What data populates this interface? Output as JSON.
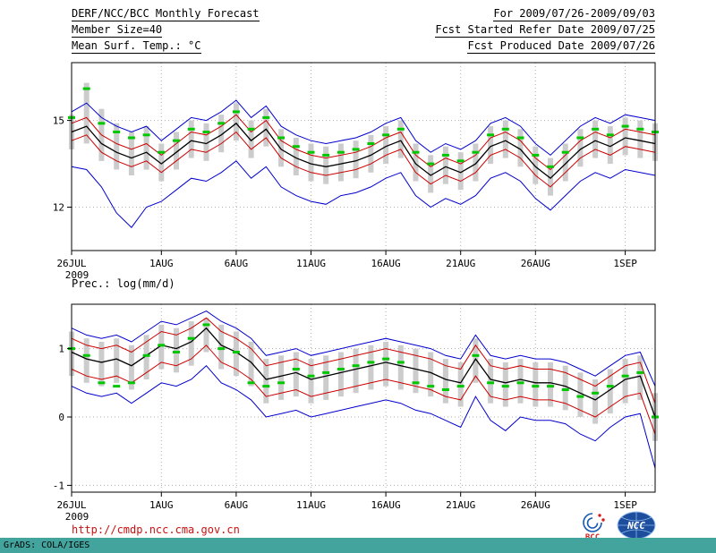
{
  "header": {
    "left_lines": [
      "DERF/NCC/BCC Monthly Forecast",
      "Member Size=40",
      "Mean Surf. Temp.: °C"
    ],
    "right_lines": [
      "For 2009/07/26-2009/09/03",
      "Fcst Started Refer Date 2009/07/25",
      "Fcst Produced Date 2009/07/26"
    ]
  },
  "footer": {
    "url": "http://cmdp.ncc.cma.gov.cn",
    "grads_credit": "GrADS: COLA/IGES",
    "bcc_logo_text": "BCC",
    "ncc_logo_text": "NCC"
  },
  "colors": {
    "ensemble_min_max": "#0000cc",
    "quartile_lines": "#cc0000",
    "ensemble_mean": "#000000",
    "daily_marks": "#00c800",
    "spread_bars": "#cccccc",
    "url_red": "#cc1111",
    "credit_bar_teal": "#43a49d"
  },
  "chart_data": [
    {
      "type": "line",
      "title": "Mean Surf. Temp.: °C",
      "x_year_label": "2009",
      "n_points": 40,
      "x_ticks": [
        {
          "i": 0,
          "label": "26JUL"
        },
        {
          "i": 6,
          "label": "1AUG"
        },
        {
          "i": 11,
          "label": "6AUG"
        },
        {
          "i": 16,
          "label": "11AUG"
        },
        {
          "i": 21,
          "label": "16AUG"
        },
        {
          "i": 26,
          "label": "21AUG"
        },
        {
          "i": 31,
          "label": "26AUG"
        },
        {
          "i": 37,
          "label": "1SEP"
        }
      ],
      "ylim": [
        10.5,
        17.0
      ],
      "y_ticks": [
        12,
        15
      ],
      "grid": "dotted",
      "legend": "none",
      "series": [
        {
          "name": "ensemble-max",
          "color": "#0000cc",
          "width": 1,
          "values": [
            15.3,
            15.6,
            15.1,
            14.8,
            14.6,
            14.8,
            14.3,
            14.7,
            15.1,
            15.0,
            15.3,
            15.7,
            15.1,
            15.5,
            14.8,
            14.5,
            14.3,
            14.2,
            14.3,
            14.4,
            14.6,
            14.9,
            15.1,
            14.3,
            13.9,
            14.2,
            14.0,
            14.3,
            14.9,
            15.1,
            14.8,
            14.2,
            13.8,
            14.3,
            14.8,
            15.1,
            14.9,
            15.2,
            15.1,
            15.0
          ]
        },
        {
          "name": "upper-quartile",
          "color": "#cc0000",
          "width": 1,
          "values": [
            14.9,
            15.1,
            14.5,
            14.2,
            14.0,
            14.2,
            13.8,
            14.2,
            14.6,
            14.5,
            14.8,
            15.2,
            14.6,
            15.0,
            14.3,
            14.0,
            13.8,
            13.7,
            13.8,
            13.9,
            14.1,
            14.4,
            14.6,
            13.8,
            13.4,
            13.7,
            13.5,
            13.8,
            14.4,
            14.6,
            14.3,
            13.7,
            13.3,
            13.8,
            14.3,
            14.6,
            14.4,
            14.7,
            14.6,
            14.5
          ]
        },
        {
          "name": "ensemble-mean",
          "color": "#000000",
          "width": 1.3,
          "values": [
            14.6,
            14.8,
            14.2,
            13.9,
            13.7,
            13.9,
            13.5,
            13.9,
            14.3,
            14.2,
            14.5,
            14.9,
            14.3,
            14.7,
            14.0,
            13.7,
            13.5,
            13.4,
            13.5,
            13.6,
            13.8,
            14.1,
            14.3,
            13.5,
            13.1,
            13.4,
            13.2,
            13.5,
            14.1,
            14.3,
            14.0,
            13.4,
            13.0,
            13.5,
            14.0,
            14.3,
            14.1,
            14.4,
            14.3,
            14.2
          ]
        },
        {
          "name": "lower-quartile",
          "color": "#cc0000",
          "width": 1,
          "values": [
            14.3,
            14.5,
            13.9,
            13.6,
            13.4,
            13.6,
            13.2,
            13.6,
            14.0,
            13.9,
            14.2,
            14.6,
            14.0,
            14.4,
            13.7,
            13.4,
            13.2,
            13.1,
            13.2,
            13.3,
            13.5,
            13.8,
            14.0,
            13.2,
            12.8,
            13.1,
            12.9,
            13.2,
            13.8,
            14.0,
            13.7,
            13.1,
            12.7,
            13.2,
            13.7,
            14.0,
            13.8,
            14.1,
            14.0,
            13.9
          ]
        },
        {
          "name": "ensemble-min",
          "color": "#0000cc",
          "width": 1,
          "values": [
            13.4,
            13.3,
            12.7,
            11.8,
            11.3,
            12.0,
            12.2,
            12.6,
            13.0,
            12.9,
            13.2,
            13.6,
            13.0,
            13.4,
            12.7,
            12.4,
            12.2,
            12.1,
            12.4,
            12.5,
            12.7,
            13.0,
            13.2,
            12.4,
            12.0,
            12.3,
            12.1,
            12.4,
            13.0,
            13.2,
            12.9,
            12.3,
            11.9,
            12.4,
            12.9,
            13.2,
            13.0,
            13.3,
            13.2,
            13.1
          ]
        }
      ],
      "spread_bars": {
        "name": "ensemble-spread-bar",
        "color": "#cccccc",
        "high": [
          15.2,
          16.3,
          15.4,
          14.9,
          14.6,
          14.8,
          14.2,
          14.6,
          15.0,
          14.9,
          15.2,
          15.6,
          15.0,
          15.4,
          14.7,
          14.4,
          14.2,
          14.1,
          14.2,
          14.3,
          14.5,
          14.8,
          15.0,
          14.2,
          13.8,
          14.1,
          13.9,
          14.2,
          14.8,
          15.0,
          14.7,
          14.1,
          13.7,
          14.2,
          14.7,
          15.0,
          14.8,
          15.1,
          15.0,
          14.9
        ],
        "low": [
          14.0,
          14.2,
          13.6,
          13.3,
          13.1,
          13.3,
          12.9,
          13.3,
          13.7,
          13.6,
          13.9,
          14.3,
          13.7,
          14.1,
          13.4,
          13.1,
          12.9,
          12.8,
          12.9,
          13.0,
          13.2,
          13.5,
          13.7,
          12.9,
          12.5,
          12.8,
          12.6,
          12.9,
          13.5,
          13.7,
          13.4,
          12.8,
          12.4,
          12.9,
          13.4,
          13.7,
          13.5,
          13.8,
          13.7,
          13.6
        ]
      },
      "marks": {
        "name": "daily-green-mark",
        "color": "#00c800",
        "values": [
          15.1,
          16.1,
          14.9,
          14.6,
          14.4,
          14.5,
          13.9,
          14.3,
          14.7,
          14.6,
          14.9,
          15.3,
          14.7,
          15.1,
          14.4,
          14.1,
          13.9,
          13.8,
          13.9,
          14.0,
          14.2,
          14.5,
          14.7,
          13.9,
          13.5,
          13.8,
          13.6,
          13.9,
          14.5,
          14.7,
          14.4,
          13.8,
          13.4,
          13.9,
          14.4,
          14.7,
          14.5,
          14.8,
          14.7,
          14.6
        ]
      }
    },
    {
      "type": "line",
      "title": "Prec.: log(mm/d)",
      "x_year_label": "2009",
      "n_points": 40,
      "x_ticks": [
        {
          "i": 0,
          "label": "26JUL"
        },
        {
          "i": 6,
          "label": "1AUG"
        },
        {
          "i": 11,
          "label": "6AUG"
        },
        {
          "i": 16,
          "label": "11AUG"
        },
        {
          "i": 21,
          "label": "16AUG"
        },
        {
          "i": 26,
          "label": "21AUG"
        },
        {
          "i": 31,
          "label": "26AUG"
        },
        {
          "i": 37,
          "label": "1SEP"
        }
      ],
      "ylim": [
        -1.1,
        1.65
      ],
      "y_ticks": [
        -1,
        0,
        1
      ],
      "grid": "dotted",
      "legend": "none",
      "series": [
        {
          "name": "ensemble-max",
          "color": "#0000cc",
          "width": 1,
          "values": [
            1.3,
            1.2,
            1.15,
            1.2,
            1.1,
            1.25,
            1.4,
            1.35,
            1.45,
            1.55,
            1.4,
            1.3,
            1.15,
            0.9,
            0.95,
            1.0,
            0.9,
            0.95,
            1.0,
            1.05,
            1.1,
            1.15,
            1.1,
            1.05,
            1.0,
            0.9,
            0.85,
            1.2,
            0.9,
            0.85,
            0.9,
            0.85,
            0.85,
            0.8,
            0.7,
            0.6,
            0.75,
            0.9,
            0.95,
            0.45
          ]
        },
        {
          "name": "upper-quartile",
          "color": "#cc0000",
          "width": 1,
          "values": [
            1.15,
            1.05,
            1.0,
            1.05,
            0.95,
            1.1,
            1.25,
            1.2,
            1.3,
            1.45,
            1.25,
            1.15,
            1.0,
            0.75,
            0.8,
            0.85,
            0.75,
            0.8,
            0.85,
            0.9,
            0.95,
            1.0,
            0.95,
            0.9,
            0.85,
            0.75,
            0.7,
            1.05,
            0.75,
            0.7,
            0.75,
            0.7,
            0.7,
            0.65,
            0.55,
            0.45,
            0.6,
            0.75,
            0.8,
            0.2
          ]
        },
        {
          "name": "ensemble-mean",
          "color": "#000000",
          "width": 1.3,
          "values": [
            0.95,
            0.85,
            0.8,
            0.85,
            0.75,
            0.9,
            1.05,
            1.0,
            1.1,
            1.3,
            1.05,
            0.95,
            0.8,
            0.55,
            0.6,
            0.65,
            0.55,
            0.6,
            0.65,
            0.7,
            0.75,
            0.8,
            0.75,
            0.7,
            0.65,
            0.55,
            0.5,
            0.85,
            0.55,
            0.5,
            0.55,
            0.5,
            0.5,
            0.45,
            0.35,
            0.25,
            0.4,
            0.55,
            0.6,
            0.0
          ]
        },
        {
          "name": "lower-quartile",
          "color": "#cc0000",
          "width": 1,
          "values": [
            0.7,
            0.6,
            0.55,
            0.6,
            0.5,
            0.65,
            0.8,
            0.75,
            0.85,
            1.05,
            0.8,
            0.7,
            0.55,
            0.3,
            0.35,
            0.4,
            0.3,
            0.35,
            0.4,
            0.45,
            0.5,
            0.55,
            0.5,
            0.45,
            0.4,
            0.3,
            0.25,
            0.6,
            0.3,
            0.25,
            0.3,
            0.25,
            0.25,
            0.2,
            0.1,
            0.0,
            0.15,
            0.3,
            0.35,
            -0.25
          ]
        },
        {
          "name": "ensemble-min",
          "color": "#0000cc",
          "width": 1,
          "values": [
            0.45,
            0.35,
            0.3,
            0.35,
            0.2,
            0.35,
            0.5,
            0.45,
            0.55,
            0.75,
            0.5,
            0.4,
            0.25,
            0.0,
            0.05,
            0.1,
            0.0,
            0.05,
            0.1,
            0.15,
            0.2,
            0.25,
            0.2,
            0.1,
            0.05,
            -0.05,
            -0.15,
            0.3,
            -0.05,
            -0.2,
            0.0,
            -0.05,
            -0.05,
            -0.1,
            -0.25,
            -0.35,
            -0.15,
            0.0,
            0.05,
            -0.75
          ]
        }
      ],
      "spread_bars": {
        "name": "ensemble-spread-bar",
        "color": "#cccccc",
        "high": [
          1.25,
          1.15,
          1.1,
          1.15,
          1.05,
          1.2,
          1.35,
          1.3,
          1.4,
          1.45,
          1.35,
          1.25,
          1.1,
          0.85,
          0.9,
          0.95,
          0.85,
          0.9,
          0.95,
          1.0,
          1.05,
          1.1,
          1.05,
          1.0,
          0.95,
          0.85,
          0.8,
          1.15,
          0.85,
          0.8,
          0.85,
          0.8,
          0.8,
          0.75,
          0.65,
          0.55,
          0.7,
          0.85,
          0.9,
          0.35
        ],
        "low": [
          0.6,
          0.5,
          0.45,
          0.5,
          0.4,
          0.55,
          0.7,
          0.65,
          0.75,
          0.95,
          0.7,
          0.6,
          0.45,
          0.2,
          0.25,
          0.3,
          0.2,
          0.25,
          0.3,
          0.35,
          0.4,
          0.45,
          0.4,
          0.35,
          0.3,
          0.2,
          0.15,
          0.5,
          0.2,
          0.15,
          0.2,
          0.15,
          0.15,
          0.1,
          0.0,
          -0.1,
          0.05,
          0.2,
          0.25,
          -0.35
        ]
      },
      "marks": {
        "name": "daily-green-mark",
        "color": "#00c800",
        "values": [
          1.0,
          0.9,
          0.5,
          0.45,
          0.5,
          0.9,
          1.05,
          0.95,
          1.15,
          1.35,
          1.0,
          0.95,
          0.5,
          0.45,
          0.5,
          0.7,
          0.6,
          0.65,
          0.7,
          0.75,
          0.8,
          0.85,
          0.8,
          0.5,
          0.45,
          0.4,
          0.45,
          0.9,
          0.5,
          0.45,
          0.5,
          0.45,
          0.45,
          0.4,
          0.3,
          0.35,
          0.45,
          0.6,
          0.65,
          0.0
        ]
      }
    }
  ]
}
